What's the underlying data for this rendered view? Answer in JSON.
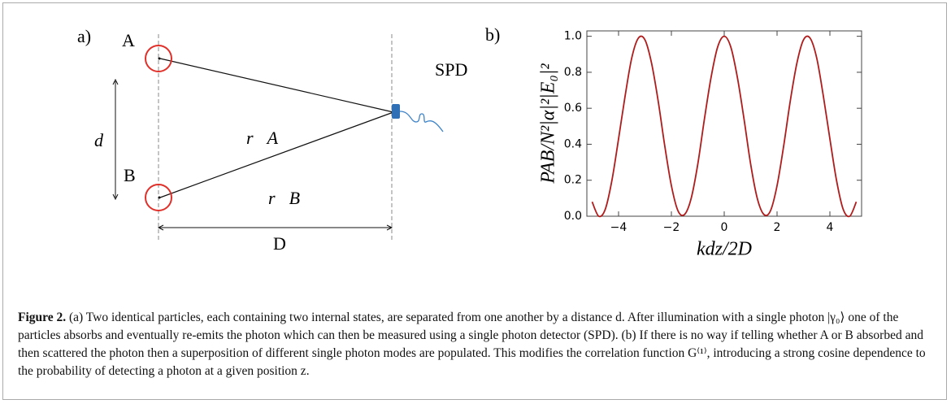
{
  "diagram": {
    "panel_label": "a)",
    "particle_a": "A",
    "particle_b": "B",
    "separation_label": "d",
    "distance_label": "D",
    "detector_label": "SPD",
    "vector_a": "r⃗A",
    "vector_b": "r⃗B"
  },
  "chart_data": {
    "type": "line",
    "panel_label": "b)",
    "ylabel": "PAB/N²|α|²|E₀|²",
    "xlabel": "kdz/2D",
    "color": "#b01c1c",
    "x": [
      -5,
      -4.75,
      -4.5,
      -4.25,
      -4,
      -3.75,
      -3.5,
      -3.25,
      -3,
      -2.75,
      -2.5,
      -2.25,
      -2,
      -1.75,
      -1.5,
      -1.25,
      -1,
      -0.75,
      -0.5,
      -0.25,
      0,
      0.25,
      0.5,
      0.75,
      1,
      1.25,
      1.5,
      1.75,
      2,
      2.25,
      2.5,
      2.75,
      3,
      3.25,
      3.5,
      3.75,
      4,
      4.25,
      4.5,
      4.75,
      5
    ],
    "values": [
      0.08,
      0,
      0.04,
      0.2,
      0.43,
      0.67,
      0.88,
      0.99,
      0.98,
      0.85,
      0.64,
      0.39,
      0.17,
      0.03,
      0.01,
      0.1,
      0.29,
      0.54,
      0.77,
      0.94,
      1,
      0.94,
      0.77,
      0.54,
      0.29,
      0.1,
      0.01,
      0.03,
      0.17,
      0.39,
      0.64,
      0.85,
      0.98,
      0.99,
      0.88,
      0.67,
      0.43,
      0.2,
      0.04,
      0,
      0.08
    ],
    "xlim": [
      -5.2,
      5.2
    ],
    "ylim": [
      0,
      1.03
    ],
    "xticks": [
      {
        "value": -4,
        "label": "−4"
      },
      {
        "value": -2,
        "label": "−2"
      },
      0,
      2,
      4
    ],
    "yticks": [
      {
        "value": 0,
        "label": "0.0"
      },
      {
        "value": 0.2,
        "label": "0.2"
      },
      {
        "value": 0.4,
        "label": "0.4"
      },
      {
        "value": 0.6,
        "label": "0.6"
      },
      {
        "value": 0.8,
        "label": "0.8"
      },
      {
        "value": 1,
        "label": "1.0"
      }
    ]
  },
  "caption": {
    "label": "Figure 2.",
    "text": "(a) Two identical particles, each containing two internal states, are separated from one another by a distance d. After illumination with a single photon |γ₀⟩ one of the particles absorbs and eventually re-emits the photon which can then be measured using a single photon detector (SPD). (b) If there is no way if telling whether A or B absorbed and then scattered the photon then a superposition of different single photon modes are populated. This modifies the correlation function G⁽¹⁾, introducing a strong cosine dependence to the probability of detecting a photon at a given position z."
  }
}
